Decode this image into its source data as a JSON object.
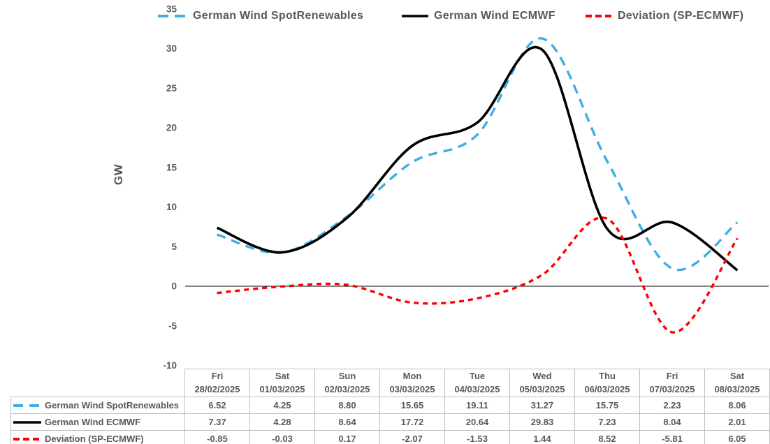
{
  "colors": {
    "text_gray": "#595959",
    "table_border": "#bfbfbf",
    "zero_line": "#000000"
  },
  "chart_data": {
    "type": "line",
    "title": "",
    "xlabel": "",
    "ylabel": "GW",
    "ylim": [
      -10,
      35
    ],
    "y_ticks": [
      35,
      30,
      25,
      20,
      15,
      10,
      5,
      0,
      -5,
      -10
    ],
    "grid": false,
    "zero_line": true,
    "line_smoothing": "spline",
    "legend_position": "top",
    "categories": [
      {
        "day": "Fri",
        "date": "28/02/2025"
      },
      {
        "day": "Sat",
        "date": "01/03/2025"
      },
      {
        "day": "Sun",
        "date": "02/03/2025"
      },
      {
        "day": "Mon",
        "date": "03/03/2025"
      },
      {
        "day": "Tue",
        "date": "04/03/2025"
      },
      {
        "day": "Wed",
        "date": "05/03/2025"
      },
      {
        "day": "Thu",
        "date": "06/03/2025"
      },
      {
        "day": "Fri",
        "date": "07/03/2025"
      },
      {
        "day": "Sat",
        "date": "08/03/2025"
      }
    ],
    "series": [
      {
        "name": "German Wind SpotRenewables",
        "color": "#3FAEE3",
        "line_style": "dashed",
        "values": [
          6.52,
          4.25,
          8.8,
          15.65,
          19.11,
          31.27,
          15.75,
          2.23,
          8.06
        ]
      },
      {
        "name": "German Wind ECMWF",
        "color": "#000000",
        "line_style": "solid",
        "values": [
          7.37,
          4.28,
          8.64,
          17.72,
          20.64,
          29.83,
          7.23,
          8.04,
          2.01
        ]
      },
      {
        "name": "Deviation (SP-ECMWF)",
        "color": "#FF0000",
        "line_style": "dashed-short",
        "values": [
          -0.85,
          -0.03,
          0.17,
          -2.07,
          -1.53,
          1.44,
          8.52,
          -5.81,
          6.05
        ]
      }
    ]
  }
}
